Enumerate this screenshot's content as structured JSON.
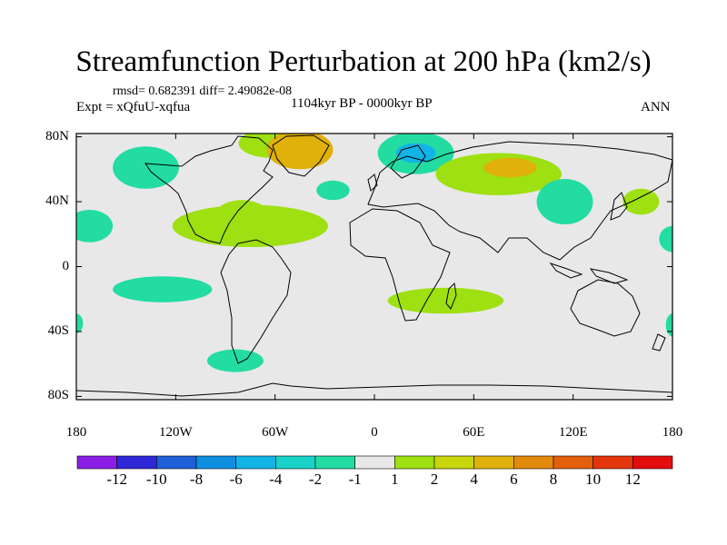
{
  "title": "Streamfunction Perturbation at 200 hPa (km2/s)",
  "stats": "rmsd= 0.682391 diff= 2.49082e-08",
  "experiment": "Expt = xQfuU-xqfua",
  "period": "1104kyr BP - 0000kyr BP",
  "season": "ANN",
  "map": {
    "lat_ticks": [
      {
        "value": 80,
        "label": "80N"
      },
      {
        "value": 40,
        "label": "40N"
      },
      {
        "value": 0,
        "label": "0"
      },
      {
        "value": -40,
        "label": "40S"
      },
      {
        "value": -80,
        "label": "80S"
      }
    ],
    "lon_ticks": [
      {
        "value": -180,
        "label": "180"
      },
      {
        "value": -120,
        "label": "120W"
      },
      {
        "value": -60,
        "label": "60W"
      },
      {
        "value": 0,
        "label": "0"
      },
      {
        "value": 60,
        "label": "60E"
      },
      {
        "value": 120,
        "label": "120E"
      },
      {
        "value": 180,
        "label": "180"
      }
    ],
    "background_color": "#e8e8e8",
    "coast_color": "#000000",
    "anomalies": [
      {
        "name": "n-pacific-neg",
        "lon": -138,
        "lat": 61,
        "rlon": 20,
        "rlat": 13,
        "level": -2
      },
      {
        "name": "pacific-west-neg",
        "lon": -172,
        "lat": 25,
        "rlon": 14,
        "rlat": 10,
        "level": -2
      },
      {
        "name": "atlantic-subtrop-pos",
        "lon": -75,
        "lat": 25,
        "rlon": 47,
        "rlat": 13,
        "level": 2
      },
      {
        "name": "central-atlantic-pos",
        "lon": -80,
        "lat": 33,
        "rlon": 15,
        "rlat": 8,
        "level": 2
      },
      {
        "name": "canada-pos",
        "lon": -62,
        "lat": 76,
        "rlon": 20,
        "rlat": 9,
        "level": 2
      },
      {
        "name": "greenland-pos",
        "lon": -45,
        "lat": 72,
        "rlon": 20,
        "rlat": 12,
        "level": 4
      },
      {
        "name": "n-atlantic-neg",
        "lon": -25,
        "lat": 47,
        "rlon": 10,
        "rlat": 6,
        "level": -2
      },
      {
        "name": "scandinavia-neg",
        "lon": 25,
        "lat": 70,
        "rlon": 23,
        "rlat": 13,
        "level": -2
      },
      {
        "name": "scandinavia-core-neg",
        "lon": 25,
        "lat": 70,
        "rlon": 12,
        "rlat": 6,
        "level": -4
      },
      {
        "name": "eurasia-pos",
        "lon": 75,
        "lat": 57,
        "rlon": 38,
        "rlat": 13,
        "level": 2
      },
      {
        "name": "eurasia-core-pos",
        "lon": 82,
        "lat": 61,
        "rlon": 16,
        "rlat": 6,
        "level": 4
      },
      {
        "name": "china-neg",
        "lon": 115,
        "lat": 40,
        "rlon": 17,
        "rlat": 14,
        "level": -2
      },
      {
        "name": "nw-pacific-pos",
        "lon": 161,
        "lat": 40,
        "rlon": 11,
        "rlat": 8,
        "level": 2
      },
      {
        "name": "e-pacific-edge-neg",
        "lon": 180,
        "lat": 17,
        "rlon": 8,
        "rlat": 8,
        "level": -2
      },
      {
        "name": "s-pacific-neg",
        "lon": -128,
        "lat": -14,
        "rlon": 30,
        "rlat": 8,
        "level": -2
      },
      {
        "name": "s-africa-pos",
        "lon": 43,
        "lat": -21,
        "rlon": 35,
        "rlat": 8,
        "level": 2
      },
      {
        "name": "s-atlantic-neg",
        "lon": -84,
        "lat": -58,
        "rlon": 17,
        "rlat": 7,
        "level": -2
      },
      {
        "name": "se-pacific-edge-neg",
        "lon": -180,
        "lat": -35,
        "rlon": 4,
        "rlat": 6,
        "level": -2
      },
      {
        "name": "sw-pacific-edge-neg",
        "lon": 180,
        "lat": -36,
        "rlon": 4,
        "rlat": 7,
        "level": -2
      }
    ]
  },
  "colorbar": {
    "labels": [
      "-12",
      "-10",
      "-8",
      "-6",
      "-4",
      "-2",
      "-1",
      "1",
      "2",
      "4",
      "6",
      "8",
      "10",
      "12"
    ],
    "colors": [
      "#8a1ee6",
      "#2d27d6",
      "#1f5fd8",
      "#0f8fe0",
      "#12b3e6",
      "#19d2c8",
      "#22dca2",
      "#e8e8e8",
      "#9ee011",
      "#c8d60c",
      "#dfb10a",
      "#e38a0c",
      "#e2600c",
      "#e3360c",
      "#e30d0d"
    ]
  }
}
